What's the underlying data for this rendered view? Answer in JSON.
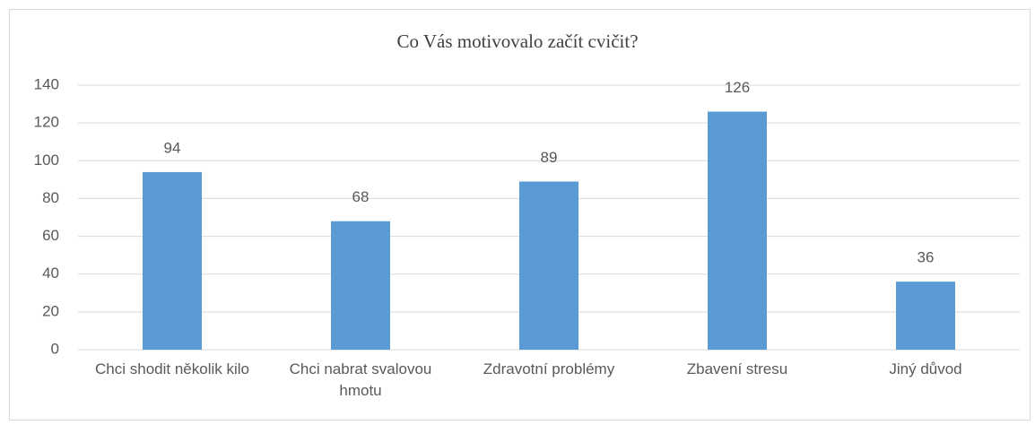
{
  "chart_data": {
    "type": "bar",
    "title": "Co Vás motivovalo začít cvičit?",
    "categories": [
      "Chci shodit několik kilo",
      "Chci nabrat svalovou hmotu",
      "Zdravotní problémy",
      "Zbavení stresu",
      "Jiný důvod"
    ],
    "values": [
      94,
      68,
      89,
      126,
      36
    ],
    "color": "#5b9bd5",
    "ylim": [
      0,
      140
    ],
    "yticks": [
      0,
      20,
      40,
      60,
      80,
      100,
      120,
      140
    ],
    "grid": true,
    "data_labels": true
  }
}
